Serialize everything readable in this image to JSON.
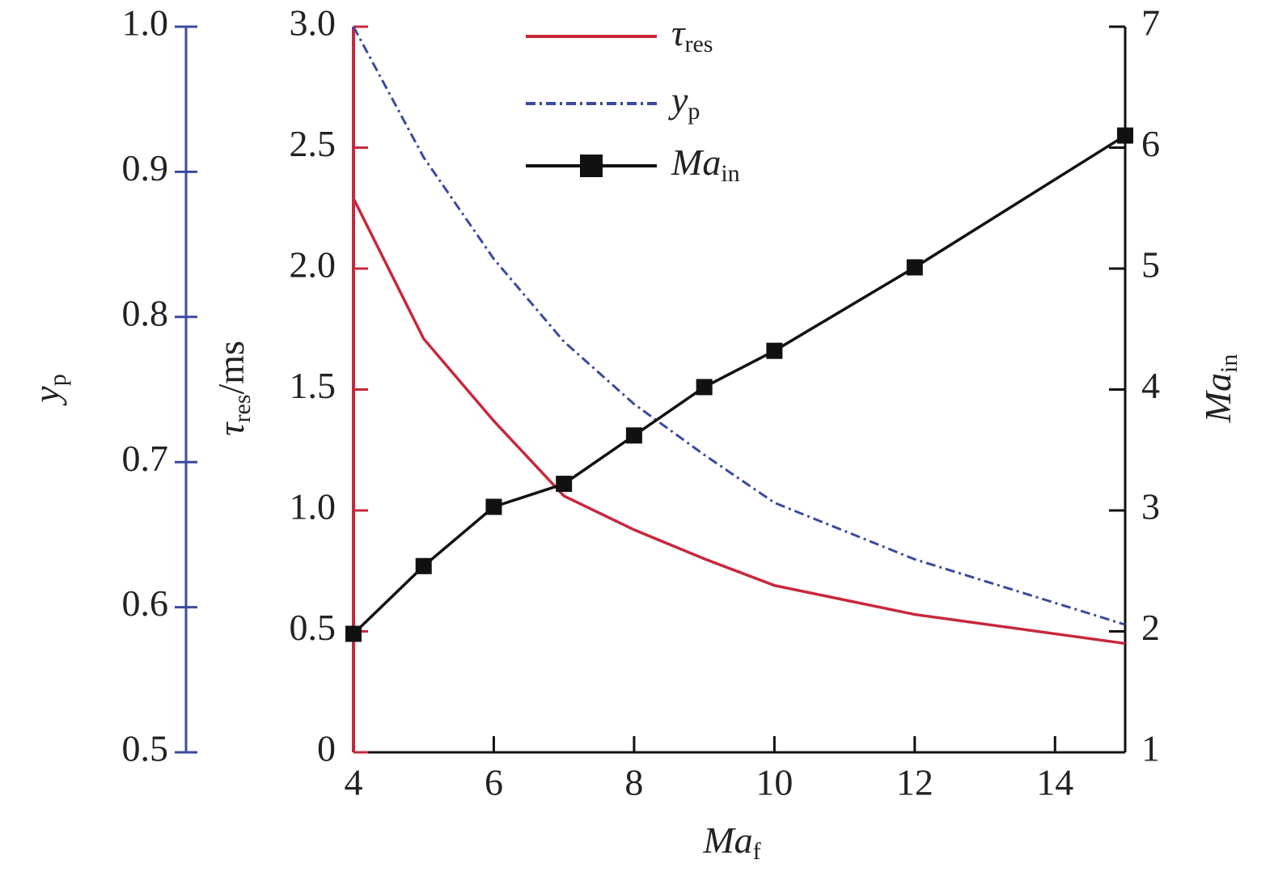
{
  "chart_data": {
    "type": "line",
    "xlabel": {
      "text": "Ma",
      "sub": "f"
    },
    "ylabel": {
      "text": "τ",
      "sub": "res",
      "suffix": "/ms"
    },
    "y2label": {
      "text": "Ma",
      "sub": "in"
    },
    "y3label": {
      "text": "y",
      "sub": "p"
    },
    "x": [
      4,
      5,
      6,
      7,
      8,
      9,
      10,
      12,
      15
    ],
    "xlim": [
      4,
      15
    ],
    "xticks": [
      4,
      6,
      8,
      10,
      12,
      14
    ],
    "ylim": [
      0,
      3
    ],
    "yticks": [
      0,
      0.5,
      {
        "value": 1,
        "label": "1.0"
      },
      1.5,
      {
        "value": 2,
        "label": "2.0"
      },
      2.5,
      {
        "value": 3,
        "label": "3.0"
      }
    ],
    "y2lim": [
      1,
      7
    ],
    "y2ticks": [
      1,
      2,
      3,
      4,
      5,
      6,
      7
    ],
    "y3lim": [
      0.5,
      1
    ],
    "y3ticks": [
      0.5,
      0.6,
      0.7,
      0.8,
      0.9,
      {
        "value": 1,
        "label": "1.0"
      }
    ],
    "y_axis_color": "#c8283c",
    "y3_axis_color": "#3a4a9c",
    "series": [
      {
        "name": "τ",
        "name_sub": "res",
        "color": "#c8283c",
        "style": "solid",
        "axis": "y",
        "values": [
          2.29,
          1.71,
          1.37,
          1.06,
          0.92,
          0.8,
          0.69,
          0.57,
          0.45
        ]
      },
      {
        "name": "y",
        "name_sub": "p",
        "color": "#3a4a9c",
        "style": "dashdot",
        "axis": "y3",
        "values": [
          1.0,
          0.91,
          0.84,
          0.783,
          0.74,
          0.705,
          0.672,
          0.633,
          0.588
        ]
      },
      {
        "name": "Ma",
        "name_sub": "in",
        "color": "#111111",
        "style": "solid",
        "marker": "square",
        "axis": "y2",
        "values": [
          1.98,
          2.54,
          3.03,
          3.22,
          3.62,
          4.02,
          4.32,
          5.01,
          6.1
        ]
      }
    ]
  }
}
